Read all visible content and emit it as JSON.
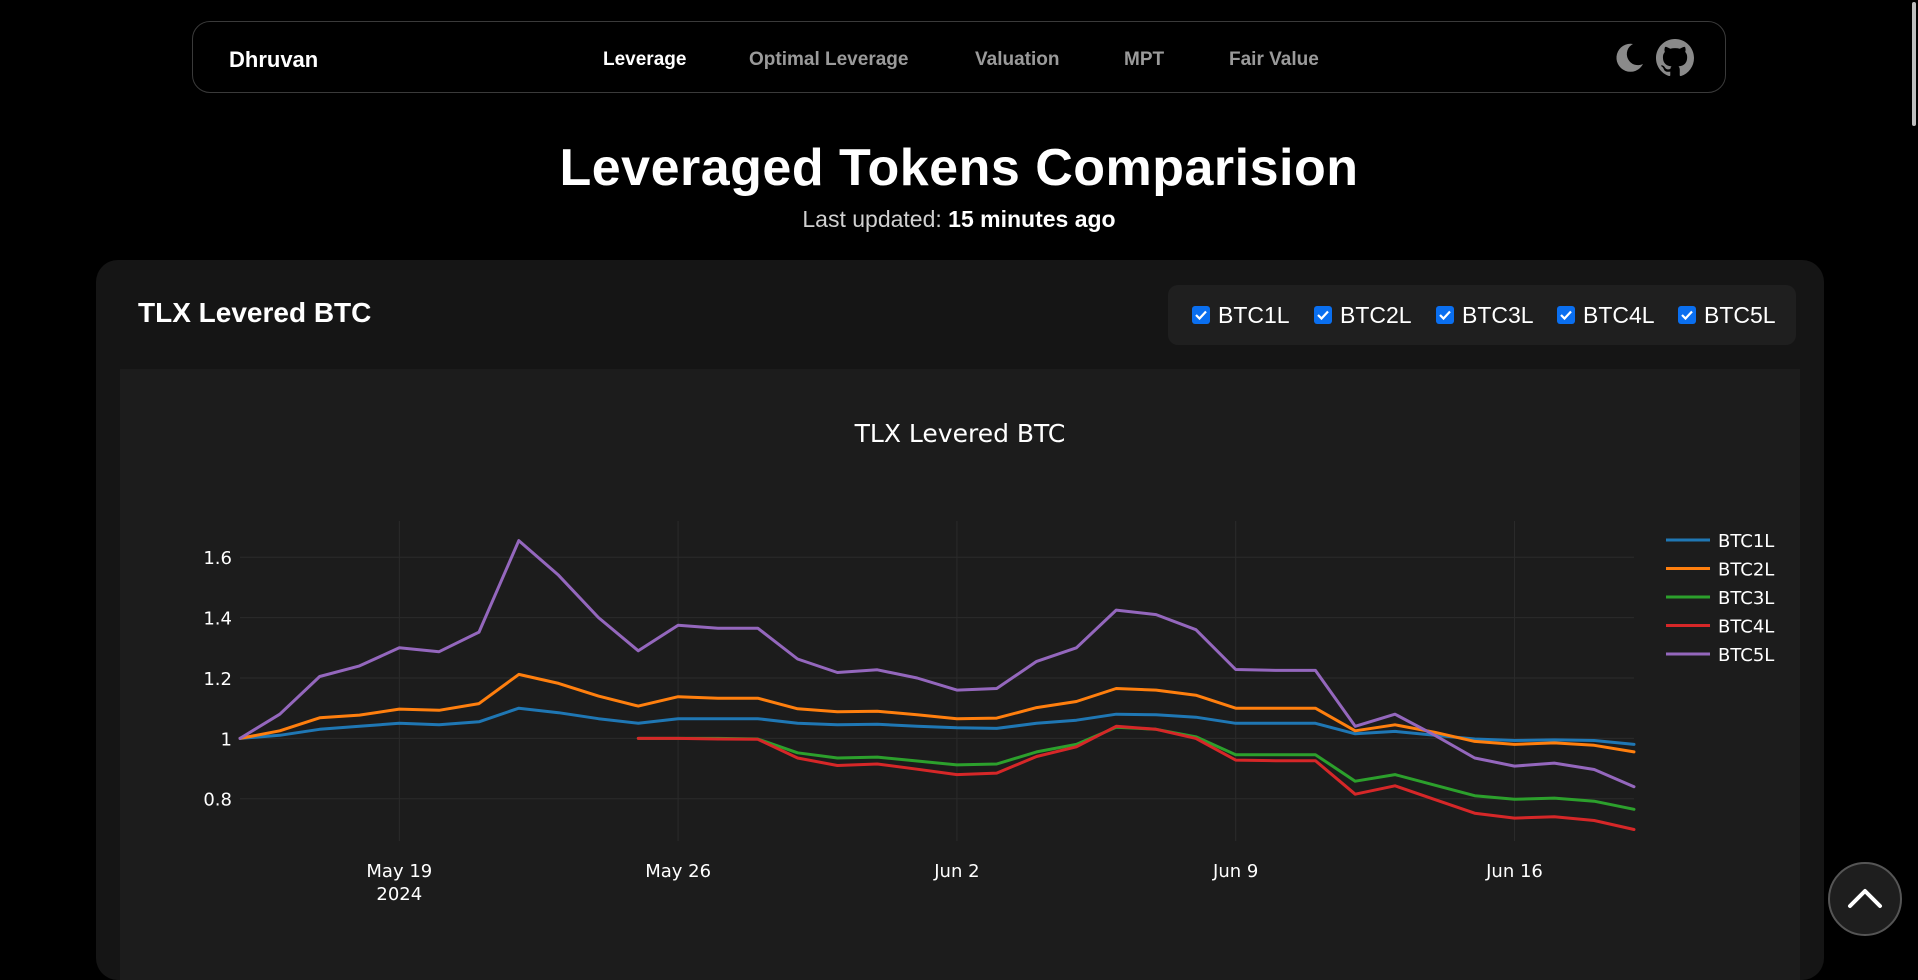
{
  "nav": {
    "brand": "Dhruvan",
    "links": [
      {
        "label": "Leverage",
        "active": true
      },
      {
        "label": "Optimal Leverage",
        "active": false
      },
      {
        "label": "Valuation",
        "active": false
      },
      {
        "label": "MPT",
        "active": false
      },
      {
        "label": "Fair Value",
        "active": false
      }
    ],
    "icons": [
      "moon-icon",
      "github-icon"
    ]
  },
  "header": {
    "title": "Leveraged Tokens Comparision",
    "updated_prefix": "Last updated:",
    "updated_value": "15 minutes ago"
  },
  "card": {
    "title": "TLX Levered BTC",
    "toggles": [
      {
        "label": "BTC1L",
        "checked": true
      },
      {
        "label": "BTC2L",
        "checked": true
      },
      {
        "label": "BTC3L",
        "checked": true
      },
      {
        "label": "BTC4L",
        "checked": true
      },
      {
        "label": "BTC5L",
        "checked": true
      }
    ]
  },
  "chart_data": {
    "type": "line",
    "title": "TLX Levered BTC",
    "xlabel": "",
    "ylabel": "",
    "x_start": "2024-05-15",
    "x_range": [
      "2024-05-15",
      "2024-06-19"
    ],
    "x_ticks": [
      "May 19",
      "May 26",
      "Jun 2",
      "Jun 9",
      "Jun 16"
    ],
    "x_ticks_dates": [
      "2024-05-19",
      "2024-05-26",
      "2024-06-02",
      "2024-06-09",
      "2024-06-16"
    ],
    "x_tick_sublabel": "2024",
    "y_ticks": [
      0.8,
      1,
      1.2,
      1.4,
      1.6
    ],
    "ylim": [
      0.66,
      1.72
    ],
    "grid": true,
    "legend_position": "top-right",
    "colors": {
      "background": "#1c1c1c",
      "text": "#ffffff",
      "grid": "#2b2b2b"
    },
    "series": [
      {
        "name": "BTC1L",
        "color": "#1f77b4",
        "x": [
          "2024-05-15",
          "2024-05-16",
          "2024-05-17",
          "2024-05-18",
          "2024-05-19",
          "2024-05-20",
          "2024-05-21",
          "2024-05-22",
          "2024-05-23",
          "2024-05-24",
          "2024-05-25",
          "2024-05-26",
          "2024-05-27",
          "2024-05-28",
          "2024-05-29",
          "2024-05-30",
          "2024-05-31",
          "2024-06-01",
          "2024-06-02",
          "2024-06-03",
          "2024-06-04",
          "2024-06-05",
          "2024-06-06",
          "2024-06-07",
          "2024-06-08",
          "2024-06-09",
          "2024-06-10",
          "2024-06-11",
          "2024-06-12",
          "2024-06-13",
          "2024-06-14",
          "2024-06-15",
          "2024-06-16",
          "2024-06-17",
          "2024-06-18",
          "2024-06-19"
        ],
        "values": [
          1.0,
          1.01,
          1.03,
          1.04,
          1.05,
          1.045,
          1.055,
          1.1,
          1.085,
          1.065,
          1.05,
          1.065,
          1.065,
          1.065,
          1.05,
          1.045,
          1.047,
          1.04,
          1.035,
          1.033,
          1.05,
          1.06,
          1.08,
          1.078,
          1.07,
          1.05,
          1.05,
          1.05,
          1.015,
          1.023,
          1.01,
          0.998,
          0.993,
          0.995,
          0.993,
          0.98
        ]
      },
      {
        "name": "BTC2L",
        "color": "#ff7f0e",
        "x": [
          "2024-05-15",
          "2024-05-16",
          "2024-05-17",
          "2024-05-18",
          "2024-05-19",
          "2024-05-20",
          "2024-05-21",
          "2024-05-22",
          "2024-05-23",
          "2024-05-24",
          "2024-05-25",
          "2024-05-26",
          "2024-05-27",
          "2024-05-28",
          "2024-05-29",
          "2024-05-30",
          "2024-05-31",
          "2024-06-01",
          "2024-06-02",
          "2024-06-03",
          "2024-06-04",
          "2024-06-05",
          "2024-06-06",
          "2024-06-07",
          "2024-06-08",
          "2024-06-09",
          "2024-06-10",
          "2024-06-11",
          "2024-06-12",
          "2024-06-13",
          "2024-06-14",
          "2024-06-15",
          "2024-06-16",
          "2024-06-17",
          "2024-06-18",
          "2024-06-19"
        ],
        "values": [
          1.0,
          1.025,
          1.068,
          1.077,
          1.097,
          1.093,
          1.115,
          1.212,
          1.182,
          1.14,
          1.107,
          1.138,
          1.133,
          1.133,
          1.098,
          1.088,
          1.09,
          1.078,
          1.065,
          1.067,
          1.102,
          1.122,
          1.165,
          1.16,
          1.143,
          1.1,
          1.1,
          1.1,
          1.025,
          1.045,
          1.02,
          0.99,
          0.98,
          0.985,
          0.977,
          0.955
        ]
      },
      {
        "name": "BTC3L",
        "color": "#2ca02c",
        "x": [
          "2024-05-25",
          "2024-05-26",
          "2024-05-27",
          "2024-05-28",
          "2024-05-29",
          "2024-05-30",
          "2024-05-31",
          "2024-06-01",
          "2024-06-02",
          "2024-06-03",
          "2024-06-04",
          "2024-06-05",
          "2024-06-06",
          "2024-06-07",
          "2024-06-08",
          "2024-06-09",
          "2024-06-10",
          "2024-06-11",
          "2024-06-12",
          "2024-06-13",
          "2024-06-14",
          "2024-06-15",
          "2024-06-16",
          "2024-06-17",
          "2024-06-18",
          "2024-06-19"
        ],
        "values": [
          1.0,
          1.0,
          1.0,
          0.998,
          0.952,
          0.935,
          0.938,
          0.925,
          0.912,
          0.915,
          0.955,
          0.98,
          1.037,
          1.03,
          1.005,
          0.946,
          0.946,
          0.946,
          0.858,
          0.88,
          0.845,
          0.81,
          0.798,
          0.802,
          0.792,
          0.765
        ]
      },
      {
        "name": "BTC4L",
        "color": "#d62728",
        "x": [
          "2024-05-25",
          "2024-05-26",
          "2024-05-27",
          "2024-05-28",
          "2024-05-29",
          "2024-05-30",
          "2024-05-31",
          "2024-06-01",
          "2024-06-02",
          "2024-06-03",
          "2024-06-04",
          "2024-06-05",
          "2024-06-06",
          "2024-06-07",
          "2024-06-08",
          "2024-06-09",
          "2024-06-10",
          "2024-06-11",
          "2024-06-12",
          "2024-06-13",
          "2024-06-14",
          "2024-06-15",
          "2024-06-16",
          "2024-06-17",
          "2024-06-18",
          "2024-06-19"
        ],
        "values": [
          1.0,
          1.0,
          0.998,
          0.997,
          0.935,
          0.91,
          0.915,
          0.898,
          0.88,
          0.885,
          0.94,
          0.972,
          1.04,
          1.03,
          1.0,
          0.928,
          0.926,
          0.926,
          0.815,
          0.843,
          0.797,
          0.752,
          0.736,
          0.74,
          0.728,
          0.698
        ]
      },
      {
        "name": "BTC5L",
        "color": "#9467bd",
        "x": [
          "2024-05-15",
          "2024-05-16",
          "2024-05-17",
          "2024-05-18",
          "2024-05-19",
          "2024-05-20",
          "2024-05-21",
          "2024-05-22",
          "2024-05-23",
          "2024-05-24",
          "2024-05-25",
          "2024-05-26",
          "2024-05-27",
          "2024-05-28",
          "2024-05-29",
          "2024-05-30",
          "2024-05-31",
          "2024-06-01",
          "2024-06-02",
          "2024-06-03",
          "2024-06-04",
          "2024-06-05",
          "2024-06-06",
          "2024-06-07",
          "2024-06-08",
          "2024-06-09",
          "2024-06-10",
          "2024-06-11",
          "2024-06-12",
          "2024-06-13",
          "2024-06-14",
          "2024-06-15",
          "2024-06-16",
          "2024-06-17",
          "2024-06-18",
          "2024-06-19"
        ],
        "values": [
          1.0,
          1.08,
          1.205,
          1.24,
          1.3,
          1.287,
          1.352,
          1.655,
          1.54,
          1.4,
          1.29,
          1.375,
          1.365,
          1.365,
          1.263,
          1.218,
          1.227,
          1.2,
          1.16,
          1.165,
          1.255,
          1.3,
          1.425,
          1.41,
          1.36,
          1.228,
          1.225,
          1.225,
          1.04,
          1.08,
          1.01,
          0.935,
          0.908,
          0.918,
          0.897,
          0.84
        ]
      }
    ]
  }
}
